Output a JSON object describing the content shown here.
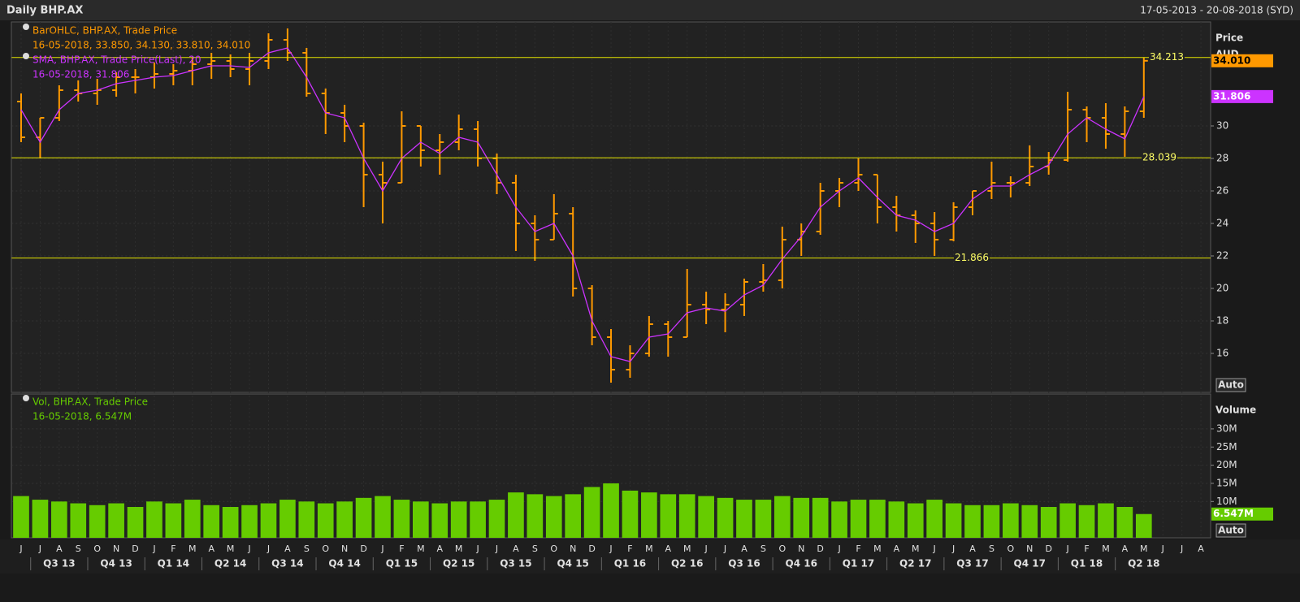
{
  "header": {
    "title": "Daily BHP.AX",
    "range": "17-05-2013 - 20-08-2018 (SYD)"
  },
  "chart_data": [
    {
      "type": "ohlc",
      "y_axis_title": "Price",
      "y_axis_unit": "AUD",
      "button": "Auto",
      "categories": [
        "J",
        "J",
        "A",
        "S",
        "O",
        "N",
        "D",
        "J",
        "F",
        "M",
        "A",
        "M",
        "J",
        "J",
        "A",
        "S",
        "O",
        "N",
        "D",
        "J",
        "F",
        "M",
        "A",
        "M",
        "J",
        "J",
        "A",
        "S",
        "O",
        "N",
        "D",
        "J",
        "F",
        "M",
        "A",
        "M",
        "J",
        "J",
        "A",
        "S",
        "O",
        "N",
        "D",
        "J",
        "F",
        "M",
        "A",
        "M",
        "J",
        "J",
        "A",
        "S",
        "O",
        "N",
        "D",
        "J",
        "F",
        "M",
        "A",
        "M",
        "J",
        "J",
        "A"
      ],
      "quarters": [
        "Q3 13",
        "Q4 13",
        "Q1 14",
        "Q2 14",
        "Q3 14",
        "Q4 14",
        "Q1 15",
        "Q2 15",
        "Q3 15",
        "Q4 15",
        "Q1 16",
        "Q2 16",
        "Q3 16",
        "Q4 16",
        "Q1 17",
        "Q2 17",
        "Q3 17",
        "Q4 17",
        "Q1 18",
        "Q2 18"
      ],
      "series": [
        {
          "name": "BarOHLC, BHP.AX, Trade Price",
          "readout": "16-05-2018, 33.850, 34.130, 33.810, 34.010",
          "color": "#ff9900",
          "open": [
            31.5,
            29.3,
            30.5,
            32.2,
            32.0,
            32.2,
            33.0,
            33.0,
            33.2,
            33.4,
            33.8,
            34.0,
            33.5,
            34.0,
            35.3,
            34.5,
            32.0,
            30.8,
            30.0,
            27.0,
            26.5,
            30.0,
            28.5,
            29.0,
            29.8,
            28.0,
            26.5,
            24.0,
            23.0,
            24.6,
            20.0,
            17.0,
            15.0,
            16.0,
            17.8,
            17.0,
            19.0,
            18.7,
            19.0,
            20.4,
            20.5,
            23.0,
            23.5,
            26.0,
            26.5,
            27.0,
            25.0,
            24.5,
            24.0,
            23.0,
            25.0,
            26.0,
            26.5,
            26.5,
            27.5,
            27.9,
            31.0,
            30.5,
            29.5,
            30.9,
            null,
            null,
            null
          ],
          "high": [
            32.0,
            30.5,
            32.5,
            32.8,
            32.9,
            33.3,
            33.5,
            33.9,
            33.8,
            34.2,
            34.5,
            34.4,
            34.5,
            35.7,
            36.0,
            34.8,
            32.3,
            31.3,
            30.2,
            27.8,
            30.9,
            30.0,
            29.5,
            30.7,
            30.3,
            28.3,
            27.0,
            24.5,
            25.8,
            25.0,
            20.2,
            17.5,
            16.5,
            18.3,
            18.0,
            21.2,
            19.8,
            19.7,
            20.6,
            21.5,
            23.8,
            24.0,
            26.5,
            26.8,
            28.0,
            27.0,
            25.7,
            24.8,
            24.7,
            25.3,
            26.0,
            27.8,
            26.9,
            28.8,
            28.4,
            32.1,
            31.2,
            31.4,
            31.2,
            34.2,
            null,
            null,
            null
          ],
          "low": [
            29.0,
            28.0,
            30.3,
            31.5,
            31.3,
            31.8,
            32.0,
            32.3,
            32.5,
            32.5,
            32.9,
            33.0,
            32.5,
            33.5,
            34.0,
            31.8,
            29.5,
            29.0,
            25.0,
            24.0,
            26.5,
            27.5,
            27.0,
            28.5,
            27.5,
            25.8,
            22.3,
            21.7,
            23.0,
            19.5,
            16.5,
            14.2,
            14.5,
            15.8,
            15.8,
            17.0,
            17.8,
            17.3,
            18.3,
            19.8,
            20.0,
            22.0,
            23.3,
            25.0,
            26.0,
            24.0,
            23.5,
            22.8,
            22.0,
            22.9,
            24.5,
            25.5,
            25.6,
            26.3,
            27.0,
            27.8,
            29.0,
            28.6,
            28.1,
            30.5,
            null,
            null,
            null
          ],
          "close": [
            29.3,
            30.5,
            32.2,
            32.0,
            32.2,
            33.0,
            33.0,
            33.2,
            33.4,
            33.8,
            34.0,
            33.5,
            34.0,
            35.3,
            34.5,
            32.0,
            30.8,
            30.0,
            27.0,
            26.5,
            30.0,
            28.5,
            29.0,
            29.8,
            28.0,
            26.5,
            24.0,
            23.0,
            24.6,
            20.0,
            17.0,
            15.0,
            16.0,
            17.8,
            17.0,
            19.0,
            18.7,
            19.0,
            20.4,
            20.5,
            23.0,
            23.5,
            26.0,
            26.5,
            27.0,
            25.0,
            24.5,
            24.0,
            23.0,
            25.0,
            26.0,
            26.5,
            26.5,
            27.5,
            27.9,
            31.0,
            30.5,
            29.5,
            30.9,
            34.01,
            null,
            null,
            null
          ]
        },
        {
          "name": "SMA, BHP.AX, Trade Price(Last),  20",
          "readout": "16-05-2018, 31.806",
          "color": "#cc33ff",
          "values": [
            31.0,
            29.0,
            31.0,
            32.0,
            32.2,
            32.6,
            32.8,
            33.0,
            33.1,
            33.4,
            33.7,
            33.7,
            33.6,
            34.5,
            34.8,
            33.0,
            30.8,
            30.5,
            28.0,
            26.0,
            28.0,
            29.0,
            28.3,
            29.3,
            29.0,
            27.0,
            25.0,
            23.5,
            24.0,
            22.0,
            18.0,
            15.8,
            15.5,
            17.0,
            17.2,
            18.5,
            18.8,
            18.6,
            19.6,
            20.2,
            21.8,
            23.2,
            25.0,
            26.0,
            26.8,
            25.6,
            24.5,
            24.2,
            23.5,
            24.0,
            25.5,
            26.3,
            26.3,
            27.0,
            27.6,
            29.5,
            30.5,
            29.8,
            29.2,
            31.806,
            null,
            null,
            null
          ]
        }
      ],
      "hlines": [
        34.213,
        28.039,
        21.866
      ],
      "tags": [
        {
          "value": 34.01,
          "label": "34.010"
        },
        31.806
      ],
      "ylim": [
        13.6,
        36.4
      ],
      "yticks": [
        16,
        18,
        20,
        22,
        24,
        26,
        28,
        30
      ],
      "grid": true
    },
    {
      "type": "bar",
      "y_axis_title": "Volume",
      "button": "Auto",
      "series": [
        {
          "name": "Vol, BHP.AX, Trade Price",
          "readout": "16-05-2018, 6.547M",
          "color": "#66cc00",
          "values": [
            11.5,
            10.5,
            10.0,
            9.5,
            9.0,
            9.5,
            8.5,
            10.0,
            9.5,
            10.5,
            9.0,
            8.5,
            9.0,
            9.5,
            10.5,
            10.0,
            9.5,
            10.0,
            11.0,
            11.5,
            10.5,
            10.0,
            9.5,
            10.0,
            10.0,
            10.5,
            12.5,
            12.0,
            11.5,
            12.0,
            14.0,
            15.0,
            13.0,
            12.5,
            12.0,
            12.0,
            11.5,
            11.0,
            10.5,
            10.5,
            11.5,
            11.0,
            11.0,
            10.0,
            10.5,
            10.5,
            10.0,
            9.5,
            10.5,
            9.5,
            9.0,
            9.0,
            9.5,
            9.0,
            8.5,
            9.5,
            9.0,
            9.5,
            8.5,
            6.547,
            null,
            null,
            null
          ]
        }
      ],
      "tags": [
        {
          "value": 6.547,
          "label": "6.547M"
        }
      ],
      "ylim": [
        0,
        39.6
      ],
      "yticks": [
        {
          "value": 10,
          "label": "10M"
        },
        {
          "value": 15,
          "label": "15M"
        },
        {
          "value": 20,
          "label": "20M"
        },
        {
          "value": 25,
          "label": "25M"
        },
        {
          "value": 30,
          "label": "30M"
        }
      ],
      "grid": true
    }
  ]
}
